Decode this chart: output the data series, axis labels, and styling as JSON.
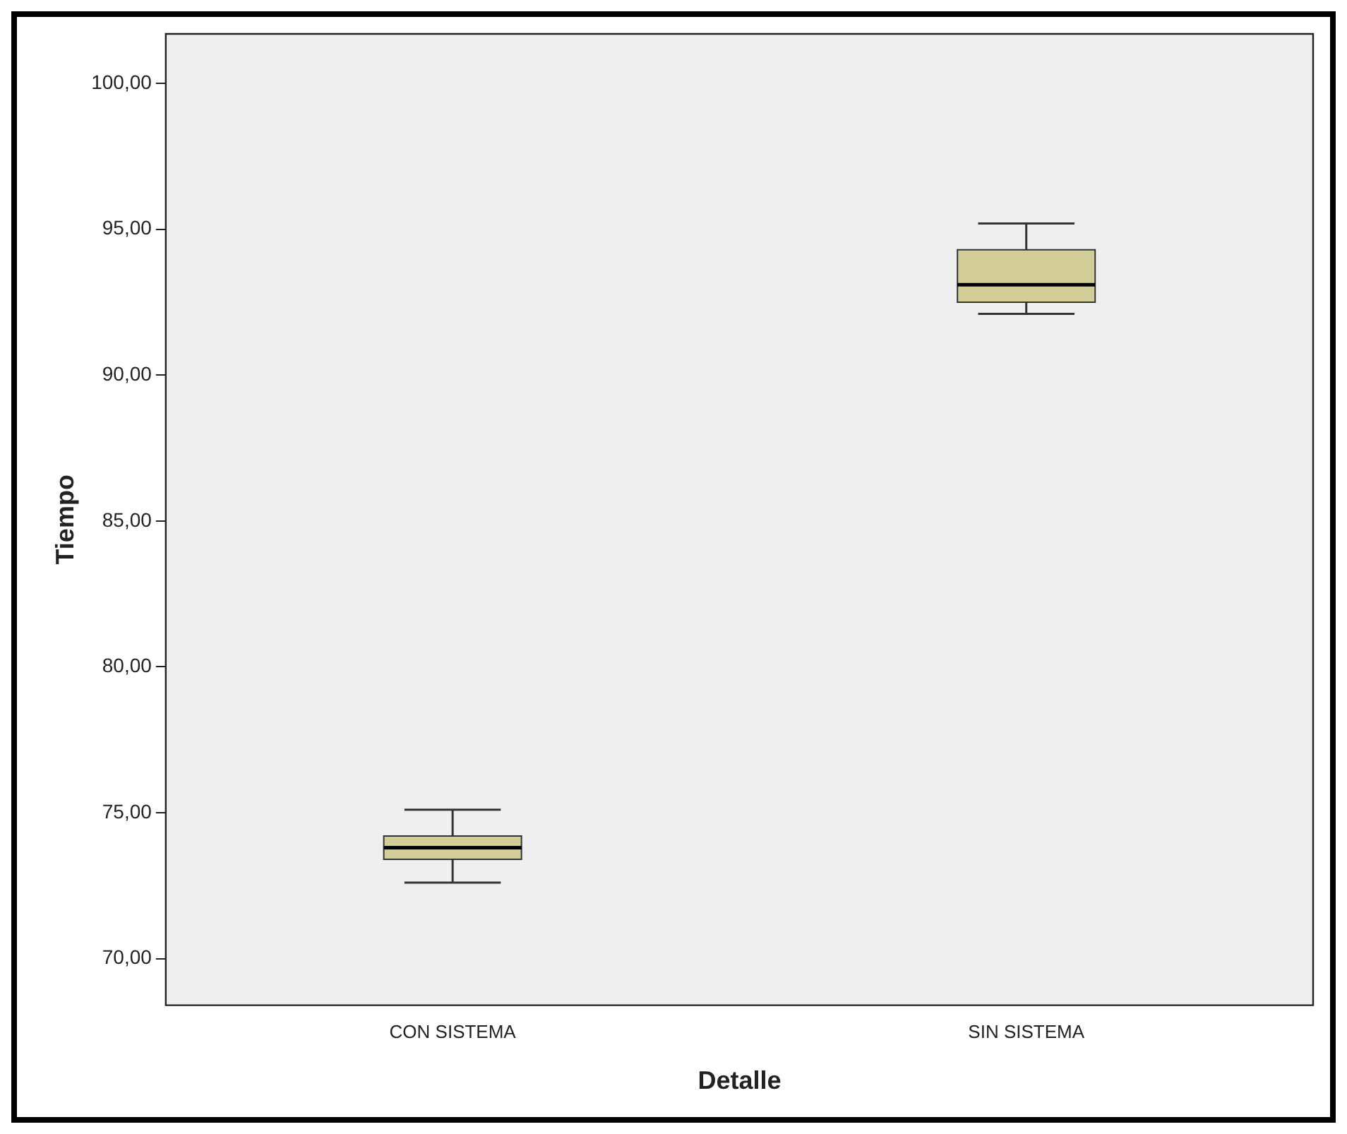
{
  "chart_data": {
    "type": "box",
    "xlabel": "Detalle",
    "ylabel": "Tiempo",
    "categories": [
      "CON SISTEMA",
      "SIN SISTEMA"
    ],
    "boxes": [
      {
        "low": 72.6,
        "q1": 73.4,
        "median": 73.8,
        "q3": 74.2,
        "high": 75.1
      },
      {
        "low": 92.1,
        "q1": 92.5,
        "median": 93.1,
        "q3": 94.3,
        "high": 95.2
      }
    ],
    "color": "#d3ce98",
    "ylim": [
      68.4,
      101.7
    ],
    "yticks": [
      {
        "value": 70,
        "label": "70,00"
      },
      {
        "value": 75,
        "label": "75,00"
      },
      {
        "value": 80,
        "label": "80,00"
      },
      {
        "value": 85,
        "label": "85,00"
      },
      {
        "value": 90,
        "label": "90,00"
      },
      {
        "value": 95,
        "label": "95,00"
      },
      {
        "value": 100,
        "label": "100,00"
      }
    ],
    "grid": false,
    "legend": false
  }
}
